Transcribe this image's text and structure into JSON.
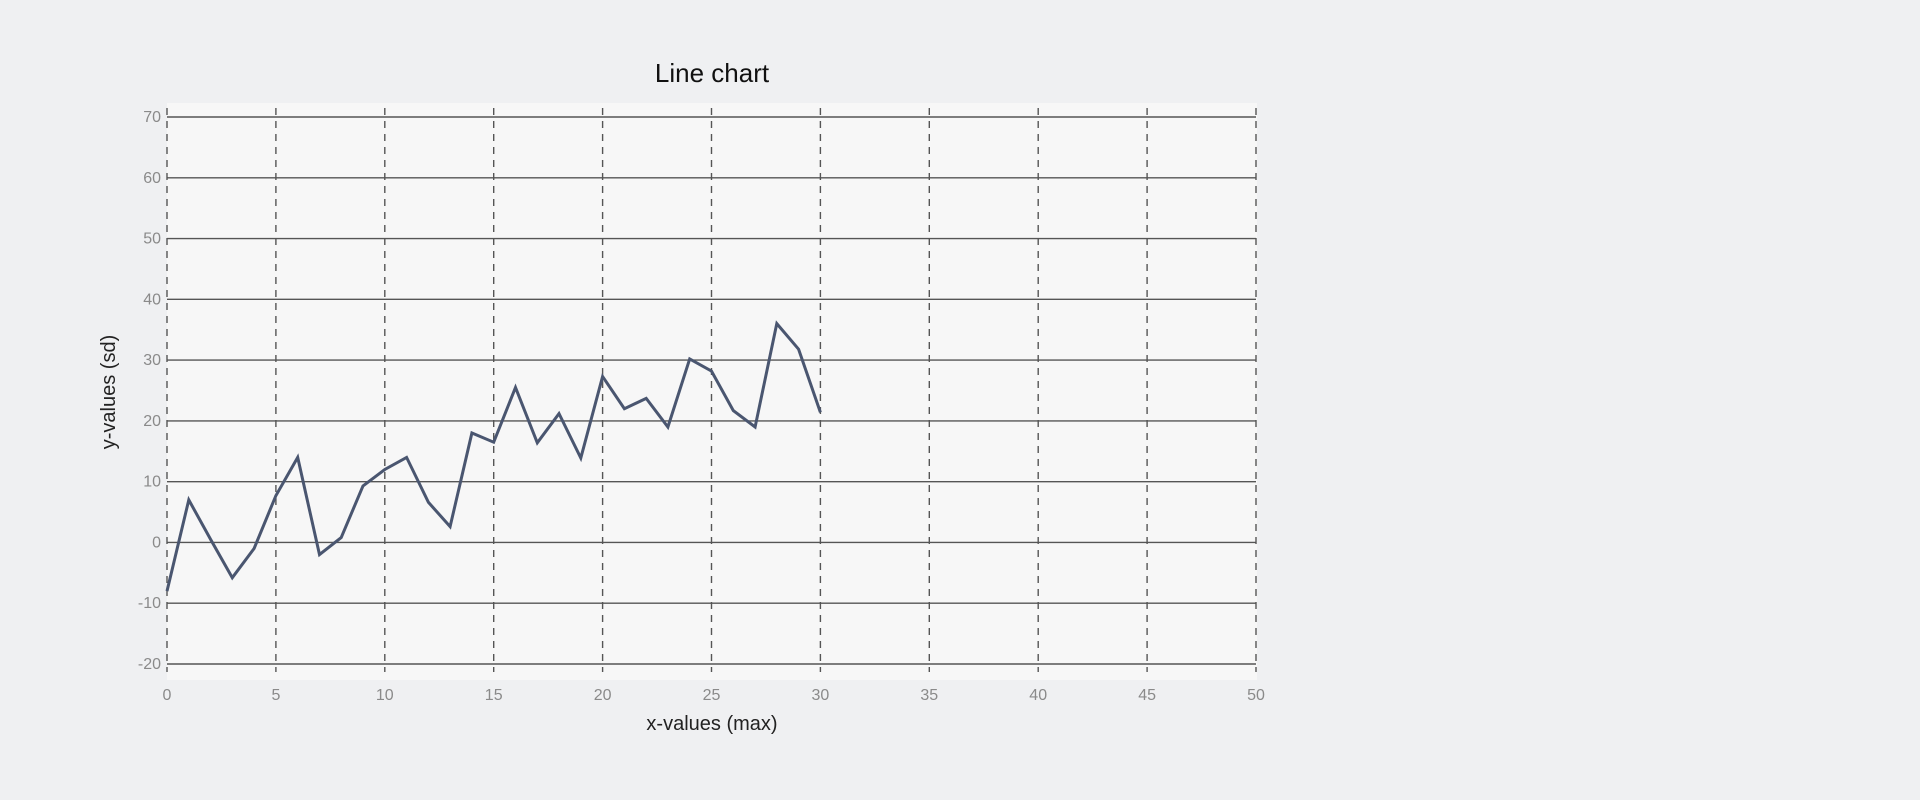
{
  "chart_data": {
    "type": "line",
    "title": "Line chart",
    "xlabel": "x-values (max)",
    "ylabel": "y-values (sd)",
    "xlim": [
      0,
      50
    ],
    "ylim": [
      -20,
      70
    ],
    "xticks": [
      0,
      5,
      10,
      15,
      20,
      25,
      30,
      35,
      40,
      45,
      50
    ],
    "yticks": [
      -20,
      -10,
      0,
      10,
      20,
      30,
      40,
      50,
      60,
      70
    ],
    "grid": {
      "x": "dashed",
      "y": "solid"
    },
    "series": [
      {
        "x": [
          0,
          1,
          2,
          3,
          4,
          5,
          6,
          7,
          8,
          9,
          10,
          11,
          12,
          13,
          14,
          15,
          16,
          17,
          18,
          19,
          20,
          21,
          22,
          23,
          24,
          25,
          26,
          27,
          28,
          29,
          30
        ],
        "values": [
          -8,
          7,
          0.5,
          -5.8,
          -1,
          7.7,
          14,
          -2,
          0.8,
          9.3,
          12,
          14,
          6.6,
          2.6,
          18,
          16.5,
          25.5,
          16.4,
          21.2,
          13.9,
          27.3,
          22,
          23.7,
          19,
          30.2,
          28.2,
          21.7,
          19,
          36,
          31.8,
          21.4
        ],
        "color": "#4a5670"
      }
    ]
  },
  "colors": {
    "page_background": "#eff0f2",
    "plot_background": "#f7f7f7",
    "gridline": "#555555",
    "line": "#4a5670"
  }
}
